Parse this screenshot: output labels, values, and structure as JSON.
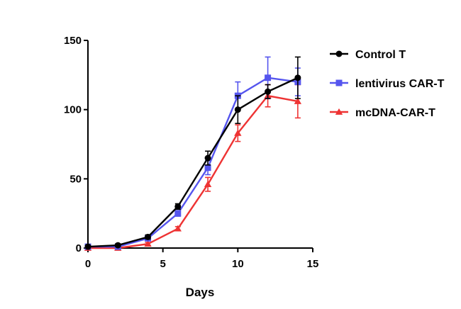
{
  "chart_data": {
    "type": "line",
    "title": "",
    "xlabel": "Days",
    "ylabel": "",
    "xlim": [
      0,
      15
    ],
    "ylim": [
      0,
      150
    ],
    "x_ticks": [
      0,
      5,
      10,
      15
    ],
    "y_ticks": [
      0,
      50,
      100,
      150
    ],
    "grid": false,
    "legend_position": "top-right",
    "series": [
      {
        "name": "Control T",
        "color": "#000000",
        "marker": "circle",
        "x": [
          0,
          2,
          4,
          6,
          8,
          10,
          12,
          14
        ],
        "values": [
          1,
          2,
          8,
          30,
          65,
          100,
          113,
          123
        ],
        "errors": [
          1,
          1,
          1.5,
          2,
          5,
          10,
          5,
          15
        ]
      },
      {
        "name": "lentivirus CAR-T",
        "color": "#5555ee",
        "marker": "square",
        "x": [
          0,
          2,
          4,
          6,
          8,
          10,
          12,
          14
        ],
        "values": [
          1,
          1,
          7,
          25,
          58,
          110,
          123,
          120
        ],
        "errors": [
          1,
          1,
          1.5,
          2,
          5,
          10,
          15,
          10
        ]
      },
      {
        "name": "mcDNA-CAR-T",
        "color": "#ee3333",
        "marker": "triangle",
        "x": [
          0,
          2,
          4,
          6,
          8,
          10,
          12,
          14
        ],
        "values": [
          0,
          0,
          3,
          14,
          46,
          83,
          110,
          106
        ],
        "errors": [
          0.5,
          0.5,
          1,
          1.5,
          5,
          6,
          8,
          12
        ]
      }
    ]
  }
}
